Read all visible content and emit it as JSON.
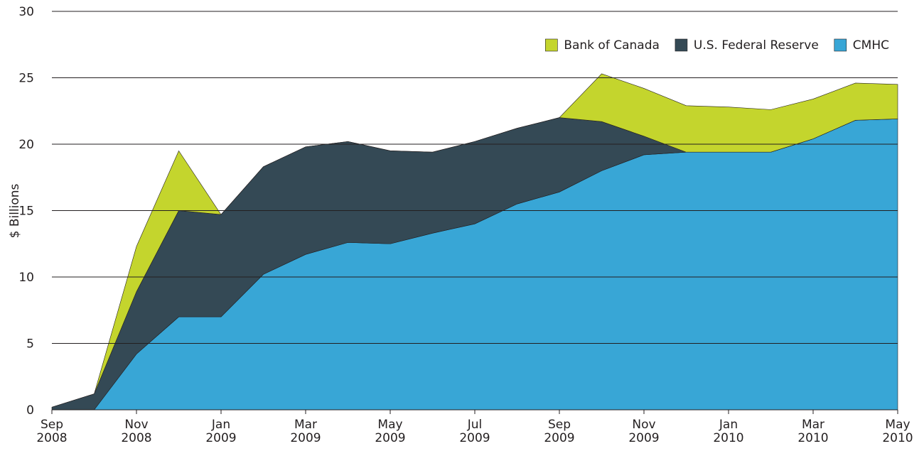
{
  "chart_data": {
    "type": "stacked_area",
    "y_label": "$ Billions",
    "x": [
      "2008-09",
      "2008-10",
      "2008-11",
      "2008-12",
      "2009-01",
      "2009-02",
      "2009-03",
      "2009-04",
      "2009-05",
      "2009-06",
      "2009-07",
      "2009-08",
      "2009-09",
      "2009-10",
      "2009-11",
      "2009-12",
      "2010-01",
      "2010-02",
      "2010-03",
      "2010-04",
      "2010-05"
    ],
    "series": [
      {
        "name": "CMHC",
        "color": "#38a6d6",
        "values": [
          0,
          0,
          4.2,
          7,
          7,
          10.2,
          11.7,
          12.6,
          12.5,
          13.3,
          14.0,
          15.5,
          16.4,
          18.0,
          19.2,
          19.4,
          19.4,
          19.4,
          20.4,
          21.8,
          21.9
        ]
      },
      {
        "name": "U.S. Federal Reserve",
        "color": "#344955",
        "values": [
          0.2,
          1.2,
          4.7,
          8.0,
          7.7,
          8.1,
          8.1,
          7.6,
          7.0,
          6.1,
          6.2,
          5.7,
          5.6,
          3.7,
          1.4,
          0,
          0,
          0,
          0,
          0,
          0
        ]
      },
      {
        "name": "Bank of Canada",
        "color": "#c4d52d",
        "values": [
          0,
          0,
          3.4,
          4.5,
          0,
          0,
          0,
          0,
          0,
          0,
          0,
          0,
          0,
          3.6,
          3.6,
          3.5,
          3.4,
          3.2,
          3.0,
          2.8,
          2.6
        ]
      }
    ],
    "xlim": [
      "2008-09",
      "2010-05"
    ],
    "xticks": [
      {
        "value": "2008-09",
        "label": "Sep 2008"
      },
      {
        "value": "2008-11",
        "label": "Nov 2008"
      },
      {
        "value": "2009-01",
        "label": "Jan 2009"
      },
      {
        "value": "2009-03",
        "label": "Mar 2009"
      },
      {
        "value": "2009-05",
        "label": "May 2009"
      },
      {
        "value": "2009-07",
        "label": "Jul 2009"
      },
      {
        "value": "2009-09",
        "label": "Sep 2009"
      },
      {
        "value": "2009-11",
        "label": "Nov 2009"
      },
      {
        "value": "2010-01",
        "label": "Jan 2010"
      },
      {
        "value": "2010-03",
        "label": "Mar 2010"
      },
      {
        "value": "2010-05",
        "label": "May 2010"
      }
    ],
    "ylim": [
      0,
      30
    ],
    "yticks": [
      0,
      5,
      10,
      15,
      20,
      25,
      30
    ],
    "grid": true,
    "legend": "top-right"
  }
}
